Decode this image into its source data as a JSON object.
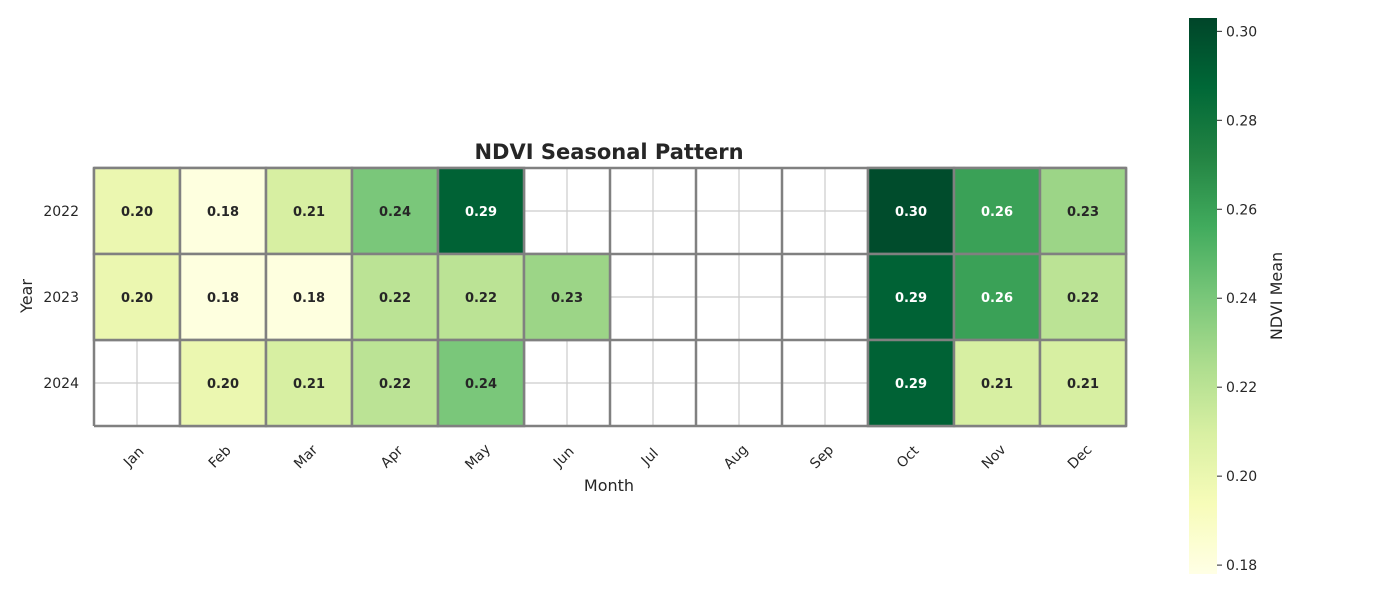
{
  "chart_data": {
    "type": "heatmap",
    "title": "NDVI Seasonal Pattern",
    "xlabel": "Month",
    "ylabel": "Year",
    "x_categories": [
      "Jan",
      "Feb",
      "Mar",
      "Apr",
      "May",
      "Jun",
      "Jul",
      "Aug",
      "Sep",
      "Oct",
      "Nov",
      "Dec"
    ],
    "y_categories": [
      "2022",
      "2023",
      "2024"
    ],
    "values": [
      [
        0.2,
        0.18,
        0.21,
        0.24,
        0.29,
        null,
        null,
        null,
        null,
        0.3,
        0.26,
        0.23
      ],
      [
        0.2,
        0.18,
        0.18,
        0.22,
        0.22,
        0.23,
        null,
        null,
        null,
        0.29,
        0.26,
        0.22
      ],
      [
        null,
        0.2,
        0.21,
        0.22,
        0.24,
        null,
        null,
        null,
        null,
        0.29,
        0.21,
        0.21
      ]
    ],
    "colorbar": {
      "label": "NDVI Mean",
      "range": [
        0.178,
        0.303
      ],
      "ticks": [
        "0.18",
        "0.20",
        "0.22",
        "0.24",
        "0.26",
        "0.28",
        "0.30"
      ],
      "colormap": "YlGn"
    },
    "grid": true,
    "cell_annotations": true
  }
}
